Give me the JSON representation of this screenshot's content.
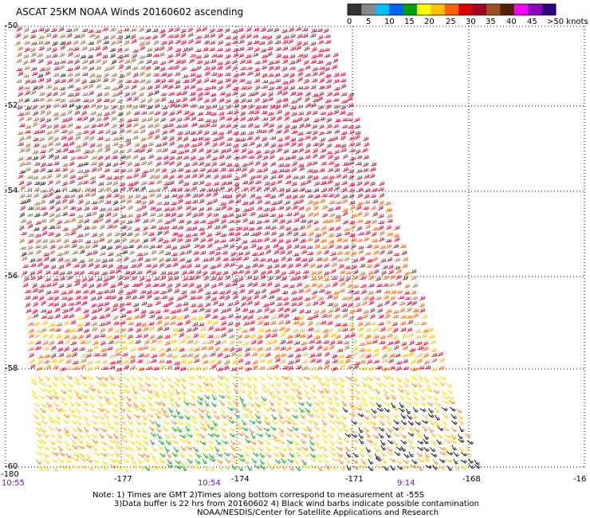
{
  "title": "ASCAT 25KM NOAA Winds 20160602 ascending",
  "legend": {
    "labels": [
      "0",
      "5",
      "10",
      "15",
      "20",
      "25",
      "30",
      "35",
      "40",
      "45",
      ">50 knots"
    ],
    "colors": [
      "#333333",
      "#888888",
      "#00bfff",
      "#0060ff",
      "#00a000",
      "#ffff00",
      "#ffc000",
      "#ff6000",
      "#e00000",
      "#a00020",
      "#a05020",
      "#502000",
      "#ff00ff",
      "#9000c0",
      "#300080"
    ]
  },
  "lat_labels": [
    "-50",
    "-52",
    "-54",
    "-56",
    "-58",
    "-60"
  ],
  "lon_labels": [
    "-180",
    "-177",
    "-174",
    "-171",
    "-168",
    "-16"
  ],
  "time_labels": [
    "10:55",
    "10:54",
    "9:14"
  ],
  "notes": [
    "Note: 1) Times are GMT 2)Times along bottom correspond to measurement at -55S",
    "3)Data buffer is 22 hrs from 20160602 4) Black wind barbs indicate possible contamination",
    "NOAA/NESDIS/Center for Satellite Applications and Research"
  ]
}
